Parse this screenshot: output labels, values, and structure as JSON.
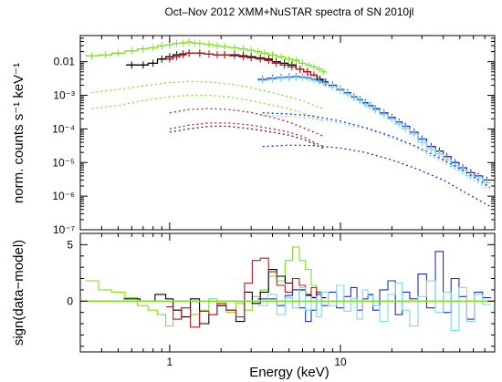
{
  "chart_data": {
    "type": "line",
    "title": "Oct–Nov 2012 XMM+NuSTAR spectra of SN 2010jl",
    "xlabel": "Energy (keV)",
    "x_scale": "log",
    "xlim": [
      0.3,
      80
    ],
    "x_ticks": [
      {
        "value": 1,
        "label": "1"
      },
      {
        "value": 10,
        "label": "10"
      }
    ],
    "panels": [
      {
        "name": "spectrum",
        "ylabel": "norm. counts s⁻¹ keV⁻¹",
        "y_scale": "log",
        "ylim": [
          1e-07,
          0.06
        ],
        "y_ticks": [
          {
            "value": 0.01,
            "label": "0.01"
          },
          {
            "value": 0.001,
            "label": "10⁻³"
          },
          {
            "value": 0.0001,
            "label": "10⁻⁴"
          },
          {
            "value": 1e-05,
            "label": "10⁻⁵"
          },
          {
            "value": 1e-06,
            "label": "10⁻⁶"
          },
          {
            "value": 1e-07,
            "label": "10⁻⁷"
          }
        ],
        "series": [
          {
            "color": "#7fdf2a",
            "style": "data",
            "x": [
              0.35,
              0.42,
              0.5,
              0.6,
              0.7,
              0.8,
              0.9,
              1.0,
              1.1,
              1.2,
              1.3,
              1.4,
              1.5,
              1.7,
              1.9,
              2.1,
              2.4,
              2.7,
              3.0,
              3.3,
              3.6,
              4.0,
              4.5,
              5.0,
              5.5,
              6.0,
              6.5,
              7.0,
              7.5,
              8.0
            ],
            "y": [
              0.015,
              0.016,
              0.018,
              0.021,
              0.024,
              0.026,
              0.03,
              0.032,
              0.035,
              0.036,
              0.038,
              0.036,
              0.035,
              0.033,
              0.03,
              0.028,
              0.026,
              0.024,
              0.022,
              0.02,
              0.018,
              0.016,
              0.014,
              0.012,
              0.011,
              0.009,
              0.008,
              0.007,
              0.006,
              0.005
            ]
          },
          {
            "color": "#000000",
            "style": "data",
            "x": [
              0.6,
              0.7,
              0.8,
              0.9,
              1.0,
              1.1,
              1.2,
              1.3,
              1.5,
              1.7,
              1.9,
              2.1,
              2.4,
              2.7,
              3.0,
              3.4,
              3.8,
              4.2,
              4.7,
              5.2,
              5.8,
              6.4,
              7.0,
              7.6,
              8.2
            ],
            "y": [
              0.008,
              0.008,
              0.009,
              0.012,
              0.014,
              0.016,
              0.017,
              0.018,
              0.018,
              0.017,
              0.016,
              0.016,
              0.016,
              0.015,
              0.014,
              0.013,
              0.012,
              0.01,
              0.009,
              0.008,
              0.006,
              0.005,
              0.004,
              0.003,
              0.0025
            ]
          },
          {
            "color": "#b2201e",
            "style": "data",
            "x": [
              1.0,
              1.1,
              1.2,
              1.3,
              1.5,
              1.7,
              1.9,
              2.1,
              2.4,
              2.7,
              3.0,
              3.4,
              3.8,
              4.2,
              4.7,
              5.2,
              5.8,
              6.4,
              7.0
            ],
            "y": [
              0.012,
              0.014,
              0.016,
              0.018,
              0.018,
              0.017,
              0.016,
              0.016,
              0.015,
              0.014,
              0.013,
              0.012,
              0.011,
              0.009,
              0.008,
              0.007,
              0.006,
              0.005,
              0.004
            ]
          },
          {
            "color": "#1f2fbf",
            "style": "data",
            "x": [
              3.5,
              4,
              4.5,
              5,
              5.5,
              6,
              6.5,
              7,
              7.5,
              8,
              9,
              10,
              11,
              12,
              13,
              14,
              15,
              16,
              18,
              20,
              22,
              24,
              27,
              30,
              34,
              38,
              42,
              47,
              52,
              58,
              64,
              72
            ],
            "y": [
              0.003,
              0.0032,
              0.0034,
              0.0035,
              0.0036,
              0.0035,
              0.0033,
              0.003,
              0.0028,
              0.0025,
              0.002,
              0.0015,
              0.0012,
              0.0009,
              0.00075,
              0.0006,
              0.0005,
              0.0004,
              0.0003,
              0.00022,
              0.00016,
              0.00012,
              8e-05,
              5e-05,
              3e-05,
              2.2e-05,
              1.5e-05,
              1e-05,
              7e-06,
              5e-06,
              4e-06,
              3e-06
            ]
          },
          {
            "color": "#7fd8ee",
            "style": "data",
            "x": [
              3.5,
              4,
              4.5,
              5,
              5.5,
              6,
              6.5,
              7,
              7.5,
              8,
              9,
              10,
              11,
              12,
              13,
              14,
              15,
              16,
              18,
              20,
              22,
              24,
              27,
              30,
              34,
              38,
              42,
              47,
              52,
              58,
              64,
              72
            ],
            "y": [
              0.0028,
              0.003,
              0.0032,
              0.0033,
              0.0034,
              0.0033,
              0.0031,
              0.0028,
              0.0026,
              0.0023,
              0.0018,
              0.0014,
              0.0011,
              0.00085,
              0.0007,
              0.00055,
              0.00045,
              0.00036,
              0.00027,
              0.0002,
              0.00014,
              0.0001,
              7e-05,
              4e-05,
              2.5e-05,
              1.8e-05,
              1.2e-05,
              8e-06,
              6e-06,
              4e-06,
              3.5e-06,
              2.5e-06
            ]
          },
          {
            "color": "#7fdf2a",
            "style": "model",
            "x": [
              0.35,
              0.5,
              0.7,
              1.0,
              1.3,
              1.7,
              2.2,
              3.0,
              4.0,
              5.0,
              6.0,
              7.0,
              8.0
            ],
            "y": [
              0.0012,
              0.0015,
              0.0019,
              0.0024,
              0.0026,
              0.0025,
              0.0022,
              0.0017,
              0.0012,
              0.0009,
              0.0007,
              0.0005,
              0.0004
            ]
          },
          {
            "color": "#7fdf2a",
            "style": "model",
            "x": [
              0.35,
              0.5,
              0.7,
              1.0,
              1.3,
              1.7,
              2.2,
              3.0,
              4.0,
              5.0,
              6.0,
              7.0,
              8.0
            ],
            "y": [
              0.0004,
              0.0005,
              0.0007,
              0.0009,
              0.001,
              0.001,
              0.0009,
              0.0007,
              0.0005,
              0.0004,
              0.0003,
              0.00022,
              0.00017
            ]
          },
          {
            "color": "#b2201e",
            "style": "model",
            "x": [
              1.0,
              1.3,
              1.7,
              2.2,
              3.0,
              4.0,
              5.0,
              6.0,
              7.0,
              8.0
            ],
            "y": [
              0.0003,
              0.00038,
              0.0004,
              0.00038,
              0.00031,
              0.00022,
              0.00016,
              0.00011,
              8e-05,
              6e-05
            ]
          },
          {
            "color": "#b2201e",
            "style": "model",
            "x": [
              1.0,
              1.3,
              1.7,
              2.2,
              3.0,
              4.0,
              5.0,
              6.0,
              7.0,
              8.0
            ],
            "y": [
              0.0001,
              0.00013,
              0.00015,
              0.00015,
              0.00013,
              0.0001,
              8e-05,
              6e-05,
              4e-05,
              3e-05
            ]
          },
          {
            "color": "#4a1d12",
            "style": "model",
            "x": [
              1.0,
              1.3,
              1.7,
              2.2,
              3.0,
              4.0,
              5.0,
              6.0,
              7.0,
              8.0
            ],
            "y": [
              8e-05,
              0.0001,
              0.00012,
              0.00012,
              0.0001,
              8e-05,
              6.5e-05,
              5e-05,
              3.6e-05,
              2.6e-05
            ]
          },
          {
            "color": "#1f2fbf",
            "style": "model",
            "x": [
              3.5,
              5,
              7,
              10,
              14,
              20,
              28,
              40,
              55,
              75
            ],
            "y": [
              0.0003,
              0.00028,
              0.00024,
              0.00017,
              0.00011,
              6e-05,
              3e-05,
              1.2e-05,
              5e-06,
              1.8e-06
            ]
          },
          {
            "color": "#1f2fbf",
            "style": "model",
            "x": [
              3.5,
              5,
              7,
              10,
              14,
              20,
              28,
              40,
              55,
              75
            ],
            "y": [
              3e-05,
              3.3e-05,
              3.2e-05,
              2.7e-05,
              2e-05,
              1.2e-05,
              6.5e-06,
              3e-06,
              1.2e-06,
              5e-07
            ]
          },
          {
            "color": "#7fd8ee",
            "style": "model",
            "x": [
              3.5,
              5,
              7,
              10,
              14,
              20,
              28,
              40,
              55,
              75
            ],
            "y": [
              0.00025,
              0.00024,
              0.0002,
              0.00015,
              0.0001,
              5.5e-05,
              2.7e-05,
              1e-05,
              4e-06,
              1.5e-06
            ]
          }
        ]
      },
      {
        "name": "residuals",
        "ylabel": "sign(data−model)",
        "y_scale": "linear",
        "ylim": [
          -4.5,
          6.0
        ],
        "y_ticks": [
          {
            "value": 5,
            "label": "5"
          },
          {
            "value": 0,
            "label": "0"
          }
        ],
        "zero_line_color": "#7fdf2a",
        "series": [
          {
            "color": "#7fdf2a",
            "x": [
              0.35,
              0.42,
              0.5,
              0.6,
              0.7,
              0.8,
              0.9,
              1.0,
              1.1,
              1.25,
              1.4,
              1.6,
              1.8,
              2.0,
              2.3,
              2.6,
              2.9,
              3.2,
              3.6,
              4.0,
              4.5,
              5.0,
              5.5,
              6.0,
              6.5,
              7.0,
              7.5
            ],
            "y": [
              1.8,
              1.0,
              0.8,
              0.3,
              -0.4,
              -0.8,
              -1.2,
              -2.2,
              -1.6,
              -0.6,
              -1.2,
              -0.8,
              0.2,
              -0.4,
              -1.0,
              -0.2,
              -0.8,
              0.4,
              1.0,
              2.2,
              1.8,
              3.6,
              4.8,
              3.6,
              2.8,
              1.4,
              0.6
            ]
          },
          {
            "color": "#000000",
            "x": [
              0.6,
              0.75,
              0.9,
              1.0,
              1.1,
              1.25,
              1.4,
              1.6,
              1.8,
              2.0,
              2.3,
              2.6,
              2.9,
              3.2,
              3.6,
              4.0,
              4.5,
              5.0,
              5.5,
              6.0,
              6.5,
              7.0,
              7.5,
              8.0
            ],
            "y": [
              0.2,
              0.0,
              0.6,
              0.2,
              -0.8,
              -1.4,
              0.2,
              -2.0,
              -1.2,
              -0.4,
              -0.8,
              -1.8,
              0.8,
              -0.2,
              0.8,
              2.8,
              2.2,
              1.6,
              1.0,
              1.0,
              0.5,
              0.3,
              0.8,
              0.3
            ]
          },
          {
            "color": "#b2201e",
            "x": [
              1.0,
              1.1,
              1.25,
              1.4,
              1.6,
              1.8,
              2.0,
              2.3,
              2.6,
              2.9,
              3.2,
              3.6,
              4.0,
              4.5,
              5.0,
              5.5,
              6.0,
              6.5,
              7.0,
              7.5
            ],
            "y": [
              -0.5,
              -1.6,
              -0.6,
              -2.3,
              -0.9,
              -1.2,
              -0.2,
              -0.8,
              -1.4,
              1.6,
              3.6,
              3.8,
              2.6,
              1.4,
              0.8,
              2.0,
              1.4,
              0.6,
              1.2,
              0.8
            ]
          },
          {
            "color": "#1f2fbf",
            "x": [
              3.5,
              4,
              4.5,
              5,
              5.5,
              6,
              6.5,
              7,
              7.5,
              8,
              9,
              10,
              11,
              12,
              13,
              14,
              15,
              16,
              18,
              20,
              22,
              24,
              27,
              30,
              34,
              38,
              42,
              47,
              52,
              58,
              64,
              72
            ],
            "y": [
              0.2,
              0.2,
              -0.4,
              0.5,
              1.0,
              -0.6,
              -1.8,
              -0.8,
              0.6,
              -0.4,
              0.8,
              -0.6,
              0.4,
              1.2,
              -0.8,
              0.2,
              0.6,
              -0.8,
              1.0,
              1.8,
              -1.2,
              0.8,
              0.2,
              2.4,
              -0.6,
              4.4,
              -1.0,
              2.0,
              0.4,
              -1.6,
              0.8,
              0.3
            ]
          },
          {
            "color": "#7fd8ee",
            "x": [
              3.5,
              4,
              4.5,
              5,
              5.5,
              6,
              6.5,
              7,
              7.5,
              8,
              9,
              10,
              11,
              12,
              13,
              14,
              15,
              16,
              18,
              20,
              22,
              24,
              27,
              30,
              34,
              38,
              42,
              47,
              52,
              58,
              64,
              72
            ],
            "y": [
              -0.4,
              0.6,
              -1.2,
              0.3,
              -0.6,
              1.2,
              -0.8,
              0.4,
              -1.4,
              0.8,
              -0.4,
              1.4,
              -0.9,
              0.2,
              -1.6,
              1.0,
              0.5,
              -0.4,
              -1.8,
              0.6,
              1.6,
              -0.8,
              -2.2,
              0.4,
              1.8,
              -1.0,
              0.8,
              -2.6,
              1.2,
              -1.8,
              0.6,
              -0.3
            ]
          }
        ]
      }
    ]
  }
}
